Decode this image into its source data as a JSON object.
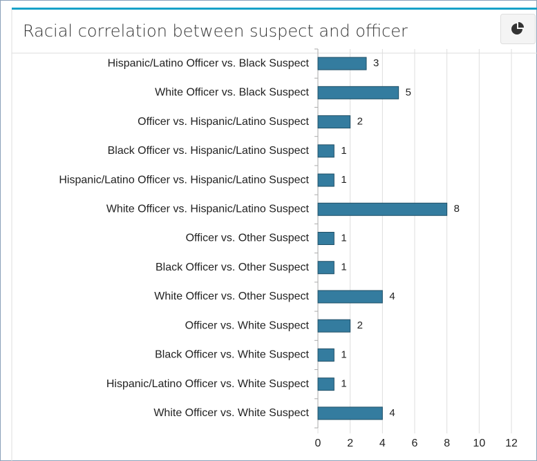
{
  "chart_data": {
    "type": "bar",
    "orientation": "horizontal",
    "title": "Racial correlation between suspect and officer",
    "categories": [
      "Hispanic/Latino Officer vs. Black Suspect",
      "White Officer vs. Black Suspect",
      "Officer vs. Hispanic/Latino Suspect",
      "Black Officer vs. Hispanic/Latino Suspect",
      "Hispanic/Latino Officer vs. Hispanic/Latino Suspect",
      "White Officer vs. Hispanic/Latino Suspect",
      "Officer vs. Other Suspect",
      "Black Officer vs. Other Suspect",
      "White Officer vs. Other Suspect",
      "Officer vs. White Suspect",
      "Black Officer vs. White Suspect",
      "Hispanic/Latino Officer vs. White Suspect",
      "White Officer vs. White Suspect"
    ],
    "values": [
      3,
      5,
      2,
      1,
      1,
      8,
      1,
      1,
      4,
      2,
      1,
      1,
      4
    ],
    "color": "#347c9f",
    "xlim": [
      0,
      12
    ],
    "xticks": [
      0,
      2,
      4,
      6,
      8,
      10,
      12
    ],
    "grid": true
  }
}
